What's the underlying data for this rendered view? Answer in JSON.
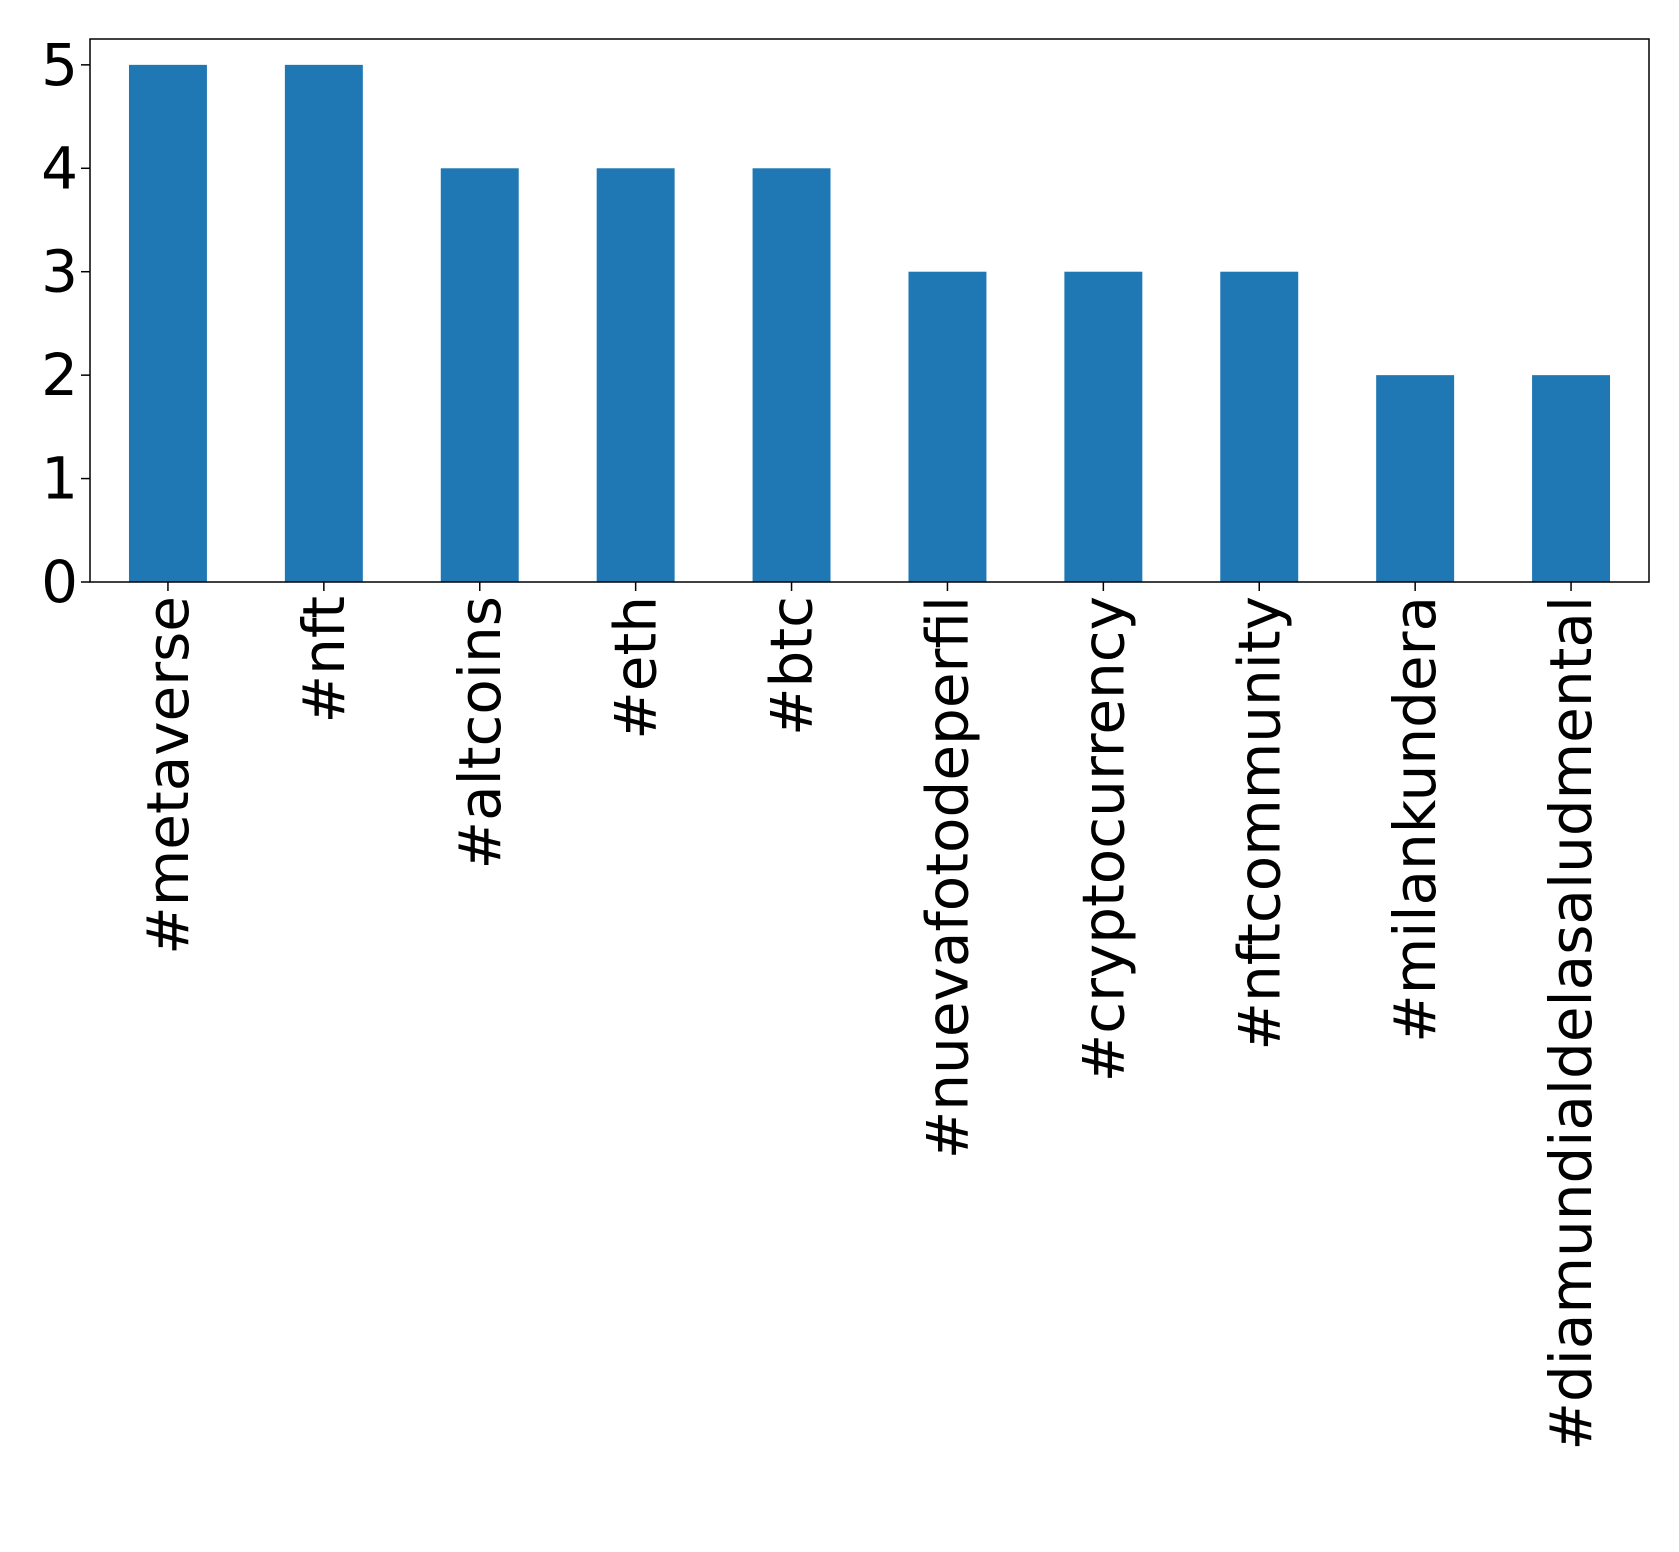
{
  "chart_data": {
    "type": "bar",
    "title": "",
    "xlabel": "",
    "ylabel": "",
    "categories": [
      "#metaverse",
      "#nft",
      "#altcoins",
      "#eth",
      "#btc",
      "#nuevafotodeperfil",
      "#cryptocurrency",
      "#nftcommunity",
      "#milankundera",
      "#diamundialdelasaludmental"
    ],
    "values": [
      5,
      5,
      4,
      4,
      4,
      3,
      3,
      3,
      2,
      2
    ],
    "ylim": [
      0,
      5.25
    ],
    "yticks": [
      "0",
      "1",
      "2",
      "3",
      "4",
      "5"
    ],
    "bar_color": "#1f77b4",
    "grid": false,
    "legend": "none"
  }
}
